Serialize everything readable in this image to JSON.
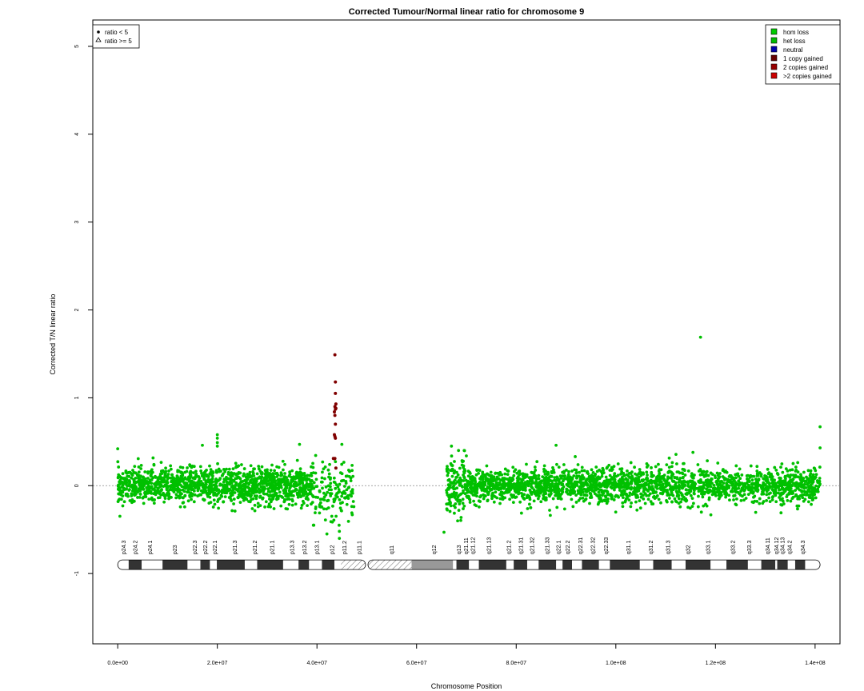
{
  "chart_data": {
    "type": "scatter",
    "title": "Corrected Tumour/Normal linear ratio for chromosome  9",
    "xlabel": "Chromosome Position",
    "ylabel": "Corrected T/N linear ratio",
    "xlim": [
      -5000000,
      145000000
    ],
    "ylim": [
      -1.8,
      5.3
    ],
    "x_ticks": [
      0,
      20000000,
      40000000,
      60000000,
      80000000,
      100000000,
      120000000,
      140000000
    ],
    "x_tick_labels": [
      "0.0e+00",
      "2.0e+07",
      "4.0e+07",
      "6.0e+07",
      "8.0e+07",
      "1.0e+08",
      "1.2e+08",
      "1.4e+08"
    ],
    "y_ticks": [
      -1,
      0,
      1,
      2,
      3,
      4,
      5
    ],
    "y_tick_labels": [
      "-1",
      "0",
      "1",
      "2",
      "3",
      "4",
      "5"
    ],
    "reference_line_y": 0,
    "shape_legend": {
      "position": "top-left",
      "items": [
        {
          "symbol": "dot",
          "label": "ratio < 5"
        },
        {
          "symbol": "triangle",
          "label": "ratio >= 5"
        }
      ]
    },
    "color_legend": {
      "position": "top-right",
      "items": [
        {
          "label": "hom loss",
          "color": "#00cc00"
        },
        {
          "label": "het loss",
          "color": "#00bb00"
        },
        {
          "label": "neutral",
          "color": "#0000aa"
        },
        {
          "label": "1 copy gained",
          "color": "#660000"
        },
        {
          "label": "2 copies gained",
          "color": "#990000"
        },
        {
          "label": ">2 copies gained",
          "color": "#cc0000"
        }
      ]
    },
    "colors": {
      "loss_points": "#00c000",
      "gain_points": "#800000",
      "centromere_fill": "#999999",
      "band_dark": "#333333"
    },
    "series": [
      {
        "name": "het loss",
        "color": "#00c000",
        "segments": [
          {
            "from": 0,
            "to": 39000000,
            "mean": 0.0,
            "sd": 0.1,
            "count": 1400
          },
          {
            "from": 39000000,
            "to": 47500000,
            "mean": -0.05,
            "sd": 0.17,
            "count": 150
          },
          {
            "from": 66000000,
            "to": 70000000,
            "mean": 0.0,
            "sd": 0.17,
            "count": 140
          },
          {
            "from": 70000000,
            "to": 141000000,
            "mean": 0.0,
            "sd": 0.1,
            "count": 2200
          }
        ],
        "notable_points": [
          {
            "x": 20000000,
            "y": 0.58
          },
          {
            "x": 20000000,
            "y": 0.54
          },
          {
            "x": 20000000,
            "y": 0.49
          },
          {
            "x": 20000000,
            "y": 0.45
          },
          {
            "x": 36500000,
            "y": 0.47
          },
          {
            "x": 17000000,
            "y": 0.46
          },
          {
            "x": 45000000,
            "y": 0.47
          },
          {
            "x": 0,
            "y": 0.42
          },
          {
            "x": 67000000,
            "y": 0.45
          },
          {
            "x": 88000000,
            "y": 0.46
          },
          {
            "x": 117000000,
            "y": 1.69
          },
          {
            "x": 141000000,
            "y": 0.67
          },
          {
            "x": 141000000,
            "y": 0.43
          },
          {
            "x": 65500000,
            "y": -0.53
          },
          {
            "x": 44500000,
            "y": -0.6
          },
          {
            "x": 44500000,
            "y": -0.52
          },
          {
            "x": 42000000,
            "y": -0.55
          }
        ]
      },
      {
        "name": "1 copy gained",
        "color": "#800000",
        "points": [
          {
            "x": 43600000,
            "y": 1.49
          },
          {
            "x": 43700000,
            "y": 1.18
          },
          {
            "x": 43700000,
            "y": 1.05
          },
          {
            "x": 43800000,
            "y": 0.93
          },
          {
            "x": 43600000,
            "y": 0.9
          },
          {
            "x": 43700000,
            "y": 0.87
          },
          {
            "x": 43800000,
            "y": 0.88
          },
          {
            "x": 43500000,
            "y": 0.84
          },
          {
            "x": 43600000,
            "y": 0.8
          },
          {
            "x": 43700000,
            "y": 0.7
          },
          {
            "x": 43500000,
            "y": 0.58
          },
          {
            "x": 43600000,
            "y": 0.56
          },
          {
            "x": 43700000,
            "y": 0.54
          },
          {
            "x": 43300000,
            "y": 0.31
          },
          {
            "x": 43600000,
            "y": 0.31
          },
          {
            "x": 43800000,
            "y": 0.2
          }
        ]
      }
    ],
    "ideogram": {
      "y": -0.9,
      "centromere": 50000000,
      "band_labels": [
        {
          "label": "p24.3",
          "x": 1200000
        },
        {
          "label": "p24.2",
          "x": 3500000
        },
        {
          "label": "p24.1",
          "x": 6500000
        },
        {
          "label": "p23",
          "x": 11500000
        },
        {
          "label": "p22.3",
          "x": 15500000
        },
        {
          "label": "p22.2",
          "x": 17600000
        },
        {
          "label": "p22.1",
          "x": 19500000
        },
        {
          "label": "p21.3",
          "x": 23500000
        },
        {
          "label": "p21.2",
          "x": 27500000
        },
        {
          "label": "p21.1",
          "x": 31000000
        },
        {
          "label": "p13.3",
          "x": 35000000
        },
        {
          "label": "p13.2",
          "x": 37500000
        },
        {
          "label": "p13.1",
          "x": 40000000
        },
        {
          "label": "p12",
          "x": 43000000
        },
        {
          "label": "p11.2",
          "x": 45500000
        },
        {
          "label": "p11.1",
          "x": 48500000
        },
        {
          "label": "q11",
          "x": 55000000
        },
        {
          "label": "q12",
          "x": 63500000
        },
        {
          "label": "q13",
          "x": 68500000
        },
        {
          "label": "q21.11",
          "x": 69900000
        },
        {
          "label": "q21.12",
          "x": 71300000
        },
        {
          "label": "q21.13",
          "x": 74500000
        },
        {
          "label": "q21.2",
          "x": 78500000
        },
        {
          "label": "q21.31",
          "x": 80900000
        },
        {
          "label": "q21.32",
          "x": 83200000
        },
        {
          "label": "q21.33",
          "x": 86200000
        },
        {
          "label": "q22.1",
          "x": 88500000
        },
        {
          "label": "q22.2",
          "x": 90300000
        },
        {
          "label": "q22.31",
          "x": 92900000
        },
        {
          "label": "q22.32",
          "x": 95400000
        },
        {
          "label": "q22.33",
          "x": 98000000
        },
        {
          "label": "q31.1",
          "x": 102500000
        },
        {
          "label": "q31.2",
          "x": 107000000
        },
        {
          "label": "q31.3",
          "x": 110500000
        },
        {
          "label": "q32",
          "x": 114500000
        },
        {
          "label": "q33.1",
          "x": 118500000
        },
        {
          "label": "q33.2",
          "x": 123500000
        },
        {
          "label": "q33.3",
          "x": 126800000
        },
        {
          "label": "q34.11",
          "x": 130500000
        },
        {
          "label": "q34.12",
          "x": 132200000
        },
        {
          "label": "q34.13",
          "x": 133400000
        },
        {
          "label": "q34.2",
          "x": 134900000
        },
        {
          "label": "q34.3",
          "x": 137500000
        }
      ],
      "dark_bands": [
        [
          2200000,
          4800000
        ],
        [
          9000000,
          14000000
        ],
        [
          16600000,
          18500000
        ],
        [
          19900000,
          25500000
        ],
        [
          28000000,
          33200000
        ],
        [
          36300000,
          38400000
        ],
        [
          41000000,
          43500000
        ],
        [
          68000000,
          70500000
        ],
        [
          72500000,
          78000000
        ],
        [
          79500000,
          82200000
        ],
        [
          84500000,
          88000000
        ],
        [
          89300000,
          91200000
        ],
        [
          93200000,
          96600000
        ],
        [
          98800000,
          104800000
        ],
        [
          107500000,
          111200000
        ],
        [
          114000000,
          119000000
        ],
        [
          122200000,
          126500000
        ],
        [
          129200000,
          132000000
        ],
        [
          132400000,
          134500000
        ],
        [
          136000000,
          138000000
        ]
      ],
      "hatched": [
        [
          44800000,
          50000000
        ],
        [
          50000000,
          59000000
        ]
      ],
      "gray": [
        [
          59000000,
          67300000
        ]
      ],
      "start": 0,
      "end": 141000000
    }
  }
}
